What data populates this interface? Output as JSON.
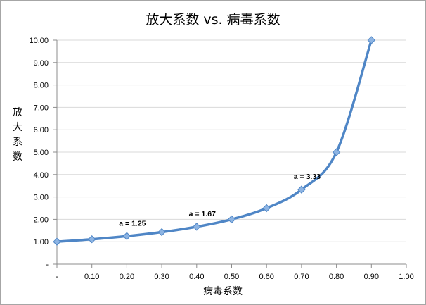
{
  "chart_data": {
    "type": "line",
    "title": "放大系数 vs. 病毒系数",
    "xlabel": "病毒系数",
    "ylabel": "放大系数",
    "xlim": [
      0,
      1
    ],
    "ylim": [
      0,
      10
    ],
    "x_ticks": [
      "-",
      "0.10",
      "0.20",
      "0.30",
      "0.40",
      "0.50",
      "0.60",
      "0.70",
      "0.80",
      "0.90",
      "1.00"
    ],
    "y_ticks": [
      "-",
      "1.00",
      "2.00",
      "3.00",
      "4.00",
      "5.00",
      "6.00",
      "7.00",
      "8.00",
      "9.00",
      "10.00"
    ],
    "grid": "horizontal",
    "smooth": true,
    "series": [
      {
        "x": [
          0,
          0.1,
          0.2,
          0.3,
          0.4,
          0.5,
          0.6,
          0.7,
          0.8,
          0.9
        ],
        "y": [
          1.0,
          1.11,
          1.25,
          1.43,
          1.67,
          2.0,
          2.5,
          3.33,
          5.0,
          10.0
        ]
      }
    ],
    "annotations": [
      {
        "text": "a = 1.25",
        "x": 0.2,
        "y": 1.25
      },
      {
        "text": "a = 1.67",
        "x": 0.4,
        "y": 1.67
      },
      {
        "text": "a = 3.33",
        "x": 0.7,
        "y": 3.33
      }
    ]
  },
  "colors": {
    "series_line": "#4f86c6",
    "marker_fill": "#8db4e3",
    "marker_stroke": "#4f86c6"
  }
}
